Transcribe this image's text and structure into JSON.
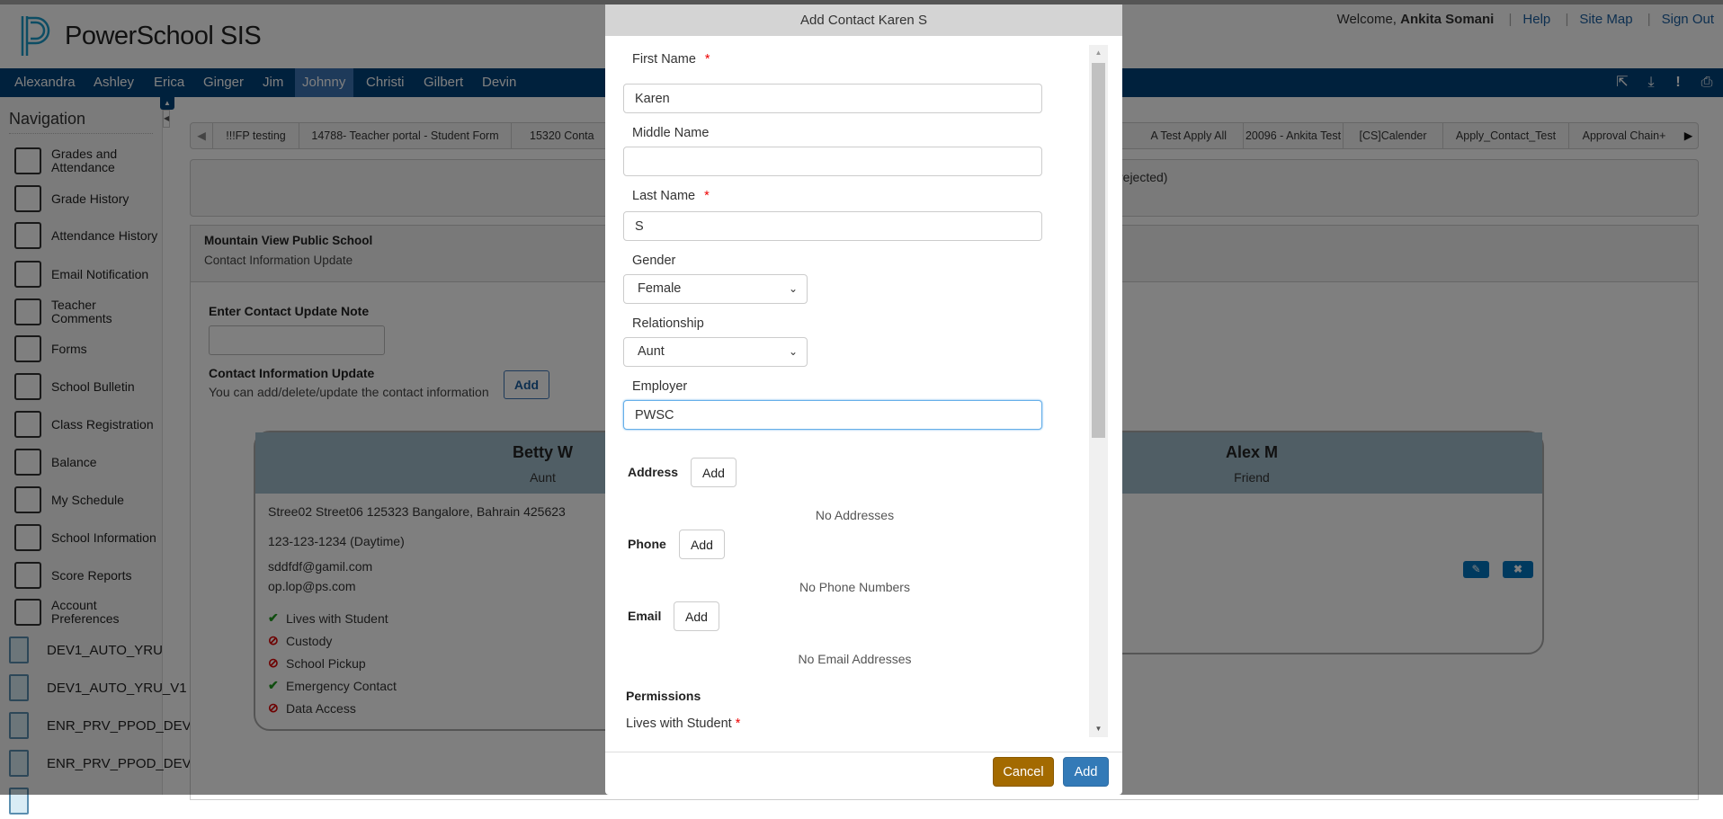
{
  "header": {
    "app_title": "PowerSchool SIS",
    "welcome_prefix": "Welcome, ",
    "user_name": "Ankita Somani",
    "links": [
      "Help",
      "Site Map",
      "Sign Out"
    ]
  },
  "students": [
    "Alexandra",
    "Ashley",
    "Erica",
    "Ginger",
    "Jim",
    "Johnny",
    "Christi",
    "Gilbert",
    "Devin"
  ],
  "active_student": "Johnny",
  "toolbar_icons": [
    "external-link-icon",
    "download-icon",
    "alert-icon",
    "print-icon"
  ],
  "sidebar": {
    "title": "Navigation",
    "items": [
      {
        "label": "Grades and Attendance",
        "icon": "grades-attendance-icon"
      },
      {
        "label": "Grade History",
        "icon": "grade-history-icon"
      },
      {
        "label": "Attendance History",
        "icon": "attendance-history-icon"
      },
      {
        "label": "Email Notification",
        "icon": "email-icon"
      },
      {
        "label": "Teacher Comments",
        "icon": "comments-icon"
      },
      {
        "label": "Forms",
        "icon": "forms-icon"
      },
      {
        "label": "School Bulletin",
        "icon": "bulletin-icon"
      },
      {
        "label": "Class Registration",
        "icon": "class-registration-icon"
      },
      {
        "label": "Balance",
        "icon": "balance-icon"
      },
      {
        "label": "My Schedule",
        "icon": "schedule-icon"
      },
      {
        "label": "School Information",
        "icon": "school-icon"
      },
      {
        "label": "Score Reports",
        "icon": "score-reports-icon"
      },
      {
        "label": "Account Preferences",
        "icon": "account-preferences-icon"
      }
    ],
    "schools": [
      "DEV1_AUTO_YRU",
      "DEV1_AUTO_YRU_V1",
      "ENR_PRV_PPOD_DEV",
      "ENR_PRV_PPOD_DEV",
      ""
    ]
  },
  "form_tabs": [
    "!!!FP testing",
    "14788- Teacher portal - Student Form",
    "15320 Conta",
    "A Test Apply All",
    "20096 - Ankita Test",
    "[CS]Calender",
    "Apply_Contact_Test",
    "Approval Chain+"
  ],
  "message": "rejected)",
  "panel": {
    "school": "Mountain View Public School",
    "subtitle": "Contact Information Update",
    "note_label": "Enter Contact Update Note",
    "note_value": "",
    "ciu_label": "Contact Information Update",
    "ciu_desc": "You can add/delete/update the contact information",
    "add_label": "Add"
  },
  "contacts": [
    {
      "name": "Betty W",
      "relationship": "Aunt",
      "address": "Stree02 Street06 125323 Bangalore, Bahrain 425623",
      "phone": "123-123-1234 (Daytime)",
      "emails": [
        "sddfdf@gamil.com",
        "op.lop@ps.com"
      ],
      "permissions": [
        {
          "label": "Lives with Student",
          "granted": true
        },
        {
          "label": "Custody",
          "granted": false
        },
        {
          "label": "School Pickup",
          "granted": false
        },
        {
          "label": "Emergency Contact",
          "granted": true
        },
        {
          "label": "Data Access",
          "granted": false
        }
      ]
    },
    {
      "name": "Alex M",
      "relationship": "Friend"
    }
  ],
  "modal": {
    "title": "Add Contact Karen S",
    "first_name_label": "First Name",
    "first_name": "Karen",
    "middle_name_label": "Middle Name",
    "middle_name": "",
    "last_name_label": "Last Name",
    "last_name": "S",
    "required_mark": "*",
    "gender_label": "Gender",
    "gender": "Female",
    "relationship_label": "Relationship",
    "relationship": "Aunt",
    "employer_label": "Employer",
    "employer": "PWSC",
    "address_label": "Address",
    "phone_label": "Phone",
    "email_label": "Email",
    "add_label": "Add",
    "no_addresses": "No Addresses",
    "no_phones": "No Phone Numbers",
    "no_emails": "No Email Addresses",
    "permissions_label": "Permissions",
    "lives_with_label": "Lives with Student",
    "cancel_label": "Cancel",
    "submit_label": "Add"
  },
  "colors": {
    "nav": "#00427a",
    "cancel": "#a36a00",
    "primary": "#337ab7"
  }
}
